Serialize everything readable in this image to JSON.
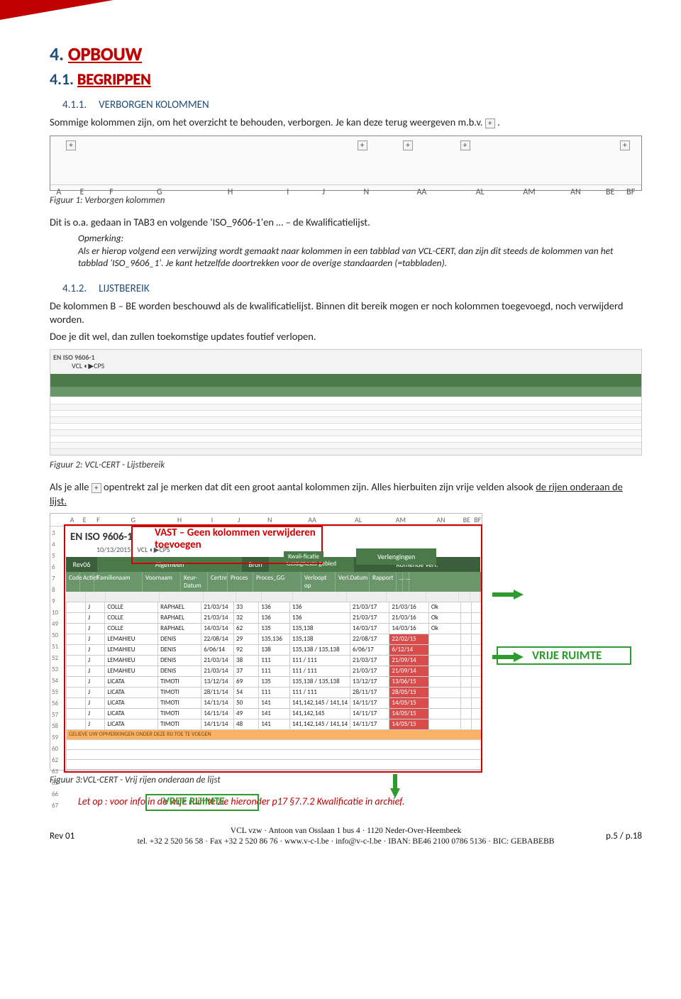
{
  "section": {
    "h1_num": "4.",
    "h1_title": "OPBOUW",
    "h2_num": "4.1.",
    "h2_title": "BEGRIPPEN",
    "h3a_num": "4.1.1.",
    "h3a_title": "VERBORGEN KOLOMMEN",
    "p1a": "Sommige kolommen zijn, om het overzicht te behouden, verborgen. Je kan deze terug weergeven m.b.v. ",
    "p1b": ".",
    "fig1_caption": "Figuur 1: Verborgen kolommen",
    "p2": "Dit is o.a. gedaan in  TAB3 en volgende 'ISO_9606-1'en … – de Kwalificatielijst.",
    "note_label": "Opmerking:",
    "note_text": "Als er hierop volgend een verwijzing wordt gemaakt naar kolommen in een tabblad van VCL-CERT, dan zijn dit steeds de kolommen van het tabblad 'ISO_9606_1'. Je kant hetzelfde doortrekken voor de overige standaarden (=tabbladen).",
    "h3b_num": "4.1.2.",
    "h3b_title": "LIJSTBEREIK",
    "p3": "De kolommen B – BE worden beschouwd als de kwalificatielijst. Binnen dit bereik mogen er noch kolommen toegevoegd, noch verwijderd worden.",
    "p4": "Doe je dit wel, dan zullen toekomstige updates foutief verlopen.",
    "fig2_title": "EN ISO 9606-1",
    "fig2_caption": "Figuur 2: VCL-CERT - Lijstbereik",
    "p5a": "Als je alle ",
    "p5b": " opentrekt zal je merken dat dit een groot aantal kolommen zijn. Alles hierbuiten zijn vrije velden alsook ",
    "p5c": "de rijen onderaan de lijst.",
    "fig3_caption": "Figuur 3:VCL-CERT - Vrij rijen onderaan de lijst",
    "attention": "Let op : voor info in de vrije ruimte zie hieronder p17 §7.7.2 Kwalificatie in archief."
  },
  "fig1": {
    "plus_positions_pct": [
      1,
      52,
      60,
      70,
      98
    ],
    "cols": [
      {
        "label": "A",
        "pct": 1
      },
      {
        "label": "E",
        "pct": 5
      },
      {
        "label": "F",
        "pct": 10
      },
      {
        "label": "G",
        "pct": 18
      },
      {
        "label": "H",
        "pct": 30
      },
      {
        "label": "I",
        "pct": 40
      },
      {
        "label": "J",
        "pct": 46
      },
      {
        "label": "N",
        "pct": 53
      },
      {
        "label": "AA",
        "pct": 62
      },
      {
        "label": "AL",
        "pct": 72
      },
      {
        "label": "AM",
        "pct": 80
      },
      {
        "label": "AN",
        "pct": 88
      },
      {
        "label": "BE",
        "pct": 94
      },
      {
        "label": "BF",
        "pct": 97.5
      }
    ]
  },
  "fig3": {
    "sheet_cols": [
      "A",
      "E",
      "F",
      "G",
      "H",
      "I",
      "J",
      "N",
      "AA",
      "AL",
      "AM",
      "AN",
      "BE",
      "BF"
    ],
    "sheet_col_widths": [
      18,
      18,
      22,
      80,
      55,
      40,
      38,
      52,
      72,
      62,
      62,
      55,
      20,
      12
    ],
    "left_row_labels": [
      "3",
      "4",
      "5",
      "6",
      "7",
      "8",
      "9",
      "10",
      "49",
      "50",
      "51",
      "52",
      "53",
      "54",
      "55",
      "56",
      "57",
      "58",
      "59",
      "60",
      "62",
      "63",
      "65",
      "66",
      "67"
    ],
    "title": "EN ISO 9606-1",
    "date": "10/13/2015",
    "overlay_vast": "VAST – Geen kolommen verwijderen toevoegen",
    "kwali_label": "Kwali-ficatie",
    "verleng_label": "Verlengingen",
    "rev_label": "Rev06",
    "band_algemeen": "Algemeen",
    "band_bron": "Bron",
    "band_geldig": "Geldigheids-gebied",
    "band_komende": "Komende verl.",
    "hdr_cells": [
      "Code",
      "Actief",
      "Familienaam",
      "Voornaam",
      "Keur-Datum",
      "Certnr",
      "Proces",
      "Proces_GG",
      "Verloopt op",
      "Verl.Datum",
      "Rapport",
      "…",
      "…"
    ],
    "hdr_widths": [
      28,
      28,
      76,
      62,
      46,
      36,
      44,
      76,
      56,
      56,
      46,
      16,
      14
    ],
    "rows": [
      [
        "",
        "J",
        "COLLE",
        "RAPHAEL",
        "21/03/14",
        "33",
        "136",
        "136",
        "21/03/17",
        "21/03/16",
        "Ok",
        "",
        ""
      ],
      [
        "",
        "J",
        "COLLE",
        "RAPHAEL",
        "21/03/14",
        "32",
        "136",
        "136",
        "21/03/17",
        "21/03/16",
        "Ok",
        "",
        ""
      ],
      [
        "",
        "J",
        "COLLE",
        "RAPHAEL",
        "14/03/14",
        "62",
        "135",
        "135,138",
        "14/03/17",
        "14/03/16",
        "Ok",
        "",
        ""
      ],
      [
        "",
        "J",
        "LEMAHIEU",
        "DENIS",
        "22/08/14",
        "29",
        "135,136",
        "135,138",
        "22/08/17",
        "22/02/15",
        "",
        "",
        ""
      ],
      [
        "",
        "J",
        "LEMAHIEU",
        "DENIS",
        "6/06/14",
        "92",
        "138",
        "135,138 / 135,138",
        "6/06/17",
        "6/12/14",
        "",
        "",
        ""
      ],
      [
        "",
        "J",
        "LEMAHIEU",
        "DENIS",
        "21/03/14",
        "38",
        "111",
        "111 / 111",
        "21/03/17",
        "21/09/14",
        "",
        "",
        ""
      ],
      [
        "",
        "J",
        "LEMAHIEU",
        "DENIS",
        "21/03/14",
        "37",
        "111",
        "111 / 111",
        "21/03/17",
        "21/09/14",
        "",
        "",
        ""
      ],
      [
        "",
        "J",
        "LICATA",
        "TIMOTI",
        "13/12/14",
        "69",
        "135",
        "135,138 / 135,138",
        "13/12/17",
        "13/06/15",
        "",
        "",
        ""
      ],
      [
        "",
        "J",
        "LICATA",
        "TIMOTI",
        "28/11/14",
        "54",
        "111",
        "111 / 111",
        "28/11/17",
        "28/05/15",
        "",
        "",
        ""
      ],
      [
        "",
        "J",
        "LICATA",
        "TIMOTI",
        "14/11/14",
        "50",
        "141",
        "141,142,145 / 141,14",
        "14/11/17",
        "14/05/15",
        "",
        "",
        ""
      ],
      [
        "",
        "J",
        "LICATA",
        "TIMOTI",
        "14/11/14",
        "49",
        "141",
        "141,142,145",
        "14/11/17",
        "14/05/15",
        "",
        "",
        ""
      ],
      [
        "",
        "J",
        "LICATA",
        "TIMOTI",
        "14/11/14",
        "48",
        "141",
        "141,142,145 / 141,14",
        "14/11/17",
        "14/05/15",
        "",
        "",
        ""
      ]
    ],
    "red_date_rows": [
      3,
      4,
      5,
      6,
      7,
      8,
      9,
      10,
      11
    ],
    "orange_msg": "GELIEVE UW OPMERKINGEN ONDER DEZE RIJ TOE TE VOEGEN",
    "vrije_ruimte": "VRIJE RUIMTE"
  },
  "footer": {
    "rev": "Rev 01",
    "line1": "VCL vzw  ·  Antoon van Osslaan 1 bus 4  ·  1120 Neder-Over-Heembeek",
    "line2": "tel. +32 2 520 56 58  ·  Fax +32 2 520 86 76  ·  www.v-c-l.be  ·  info@v-c-l.be  ·  IBAN: BE46 2100 0786 5136  ·  BIC: GEBABEBB",
    "page": "p.5 / p.18"
  },
  "colors": {
    "red": "#c00000",
    "blue": "#1f4e79",
    "green": "#2e9b2e",
    "band_green": "#4a7a4a",
    "cell_red": "#d84c4c"
  }
}
